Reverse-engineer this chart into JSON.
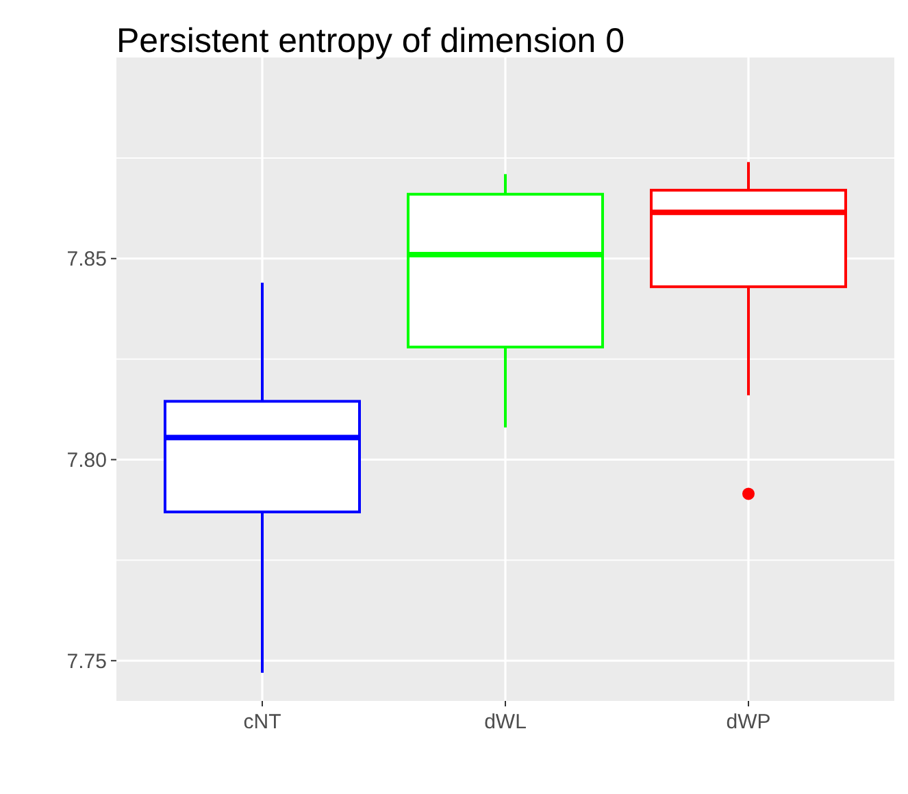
{
  "chart_data": {
    "type": "box",
    "title": "Persistent entropy of dimension 0",
    "categories": [
      "cNT",
      "dWL",
      "dWP"
    ],
    "colors": [
      "#0000ff",
      "#00ff00",
      "#ff0000"
    ],
    "boxes": [
      {
        "low": 7.747,
        "q1": 7.787,
        "median": 7.8055,
        "q3": 7.8145,
        "high": 7.844
      },
      {
        "low": 7.808,
        "q1": 7.828,
        "median": 7.851,
        "q3": 7.866,
        "high": 7.871
      },
      {
        "low": 7.816,
        "q1": 7.843,
        "median": 7.8615,
        "q3": 7.867,
        "high": 7.874,
        "outliers": [
          7.7915
        ]
      }
    ],
    "ylim": [
      7.74,
      7.9
    ],
    "yticks": [
      {
        "value": 7.75,
        "label": "7.75"
      },
      {
        "value": 7.8,
        "label": "7.80"
      },
      {
        "value": 7.85,
        "label": "7.85"
      }
    ],
    "grid": true
  }
}
